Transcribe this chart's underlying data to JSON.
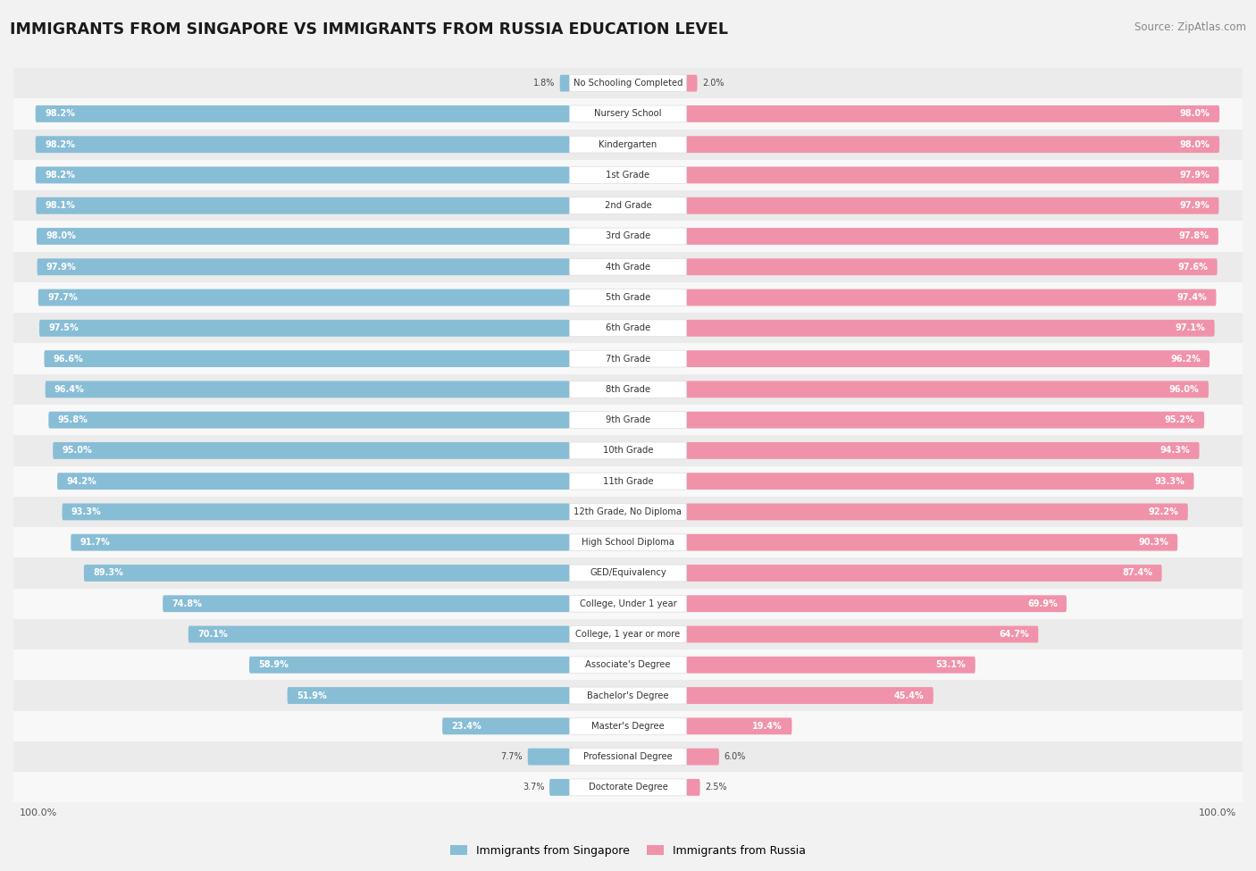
{
  "title": "IMMIGRANTS FROM SINGAPORE VS IMMIGRANTS FROM RUSSIA EDUCATION LEVEL",
  "source": "Source: ZipAtlas.com",
  "categories": [
    "No Schooling Completed",
    "Nursery School",
    "Kindergarten",
    "1st Grade",
    "2nd Grade",
    "3rd Grade",
    "4th Grade",
    "5th Grade",
    "6th Grade",
    "7th Grade",
    "8th Grade",
    "9th Grade",
    "10th Grade",
    "11th Grade",
    "12th Grade, No Diploma",
    "High School Diploma",
    "GED/Equivalency",
    "College, Under 1 year",
    "College, 1 year or more",
    "Associate's Degree",
    "Bachelor's Degree",
    "Master's Degree",
    "Professional Degree",
    "Doctorate Degree"
  ],
  "singapore_values": [
    1.8,
    98.2,
    98.2,
    98.2,
    98.1,
    98.0,
    97.9,
    97.7,
    97.5,
    96.6,
    96.4,
    95.8,
    95.0,
    94.2,
    93.3,
    91.7,
    89.3,
    74.8,
    70.1,
    58.9,
    51.9,
    23.4,
    7.7,
    3.7
  ],
  "russia_values": [
    2.0,
    98.0,
    98.0,
    97.9,
    97.9,
    97.8,
    97.6,
    97.4,
    97.1,
    96.2,
    96.0,
    95.2,
    94.3,
    93.3,
    92.2,
    90.3,
    87.4,
    69.9,
    64.7,
    53.1,
    45.4,
    19.4,
    6.0,
    2.5
  ],
  "singapore_color": "#88bdd6",
  "russia_color": "#f093aa",
  "background_color": "#f2f2f2",
  "row_even_color": "#ebebeb",
  "row_odd_color": "#f8f8f8",
  "legend_singapore": "Immigrants from Singapore",
  "legend_russia": "Immigrants from Russia",
  "label_threshold": 15.0
}
